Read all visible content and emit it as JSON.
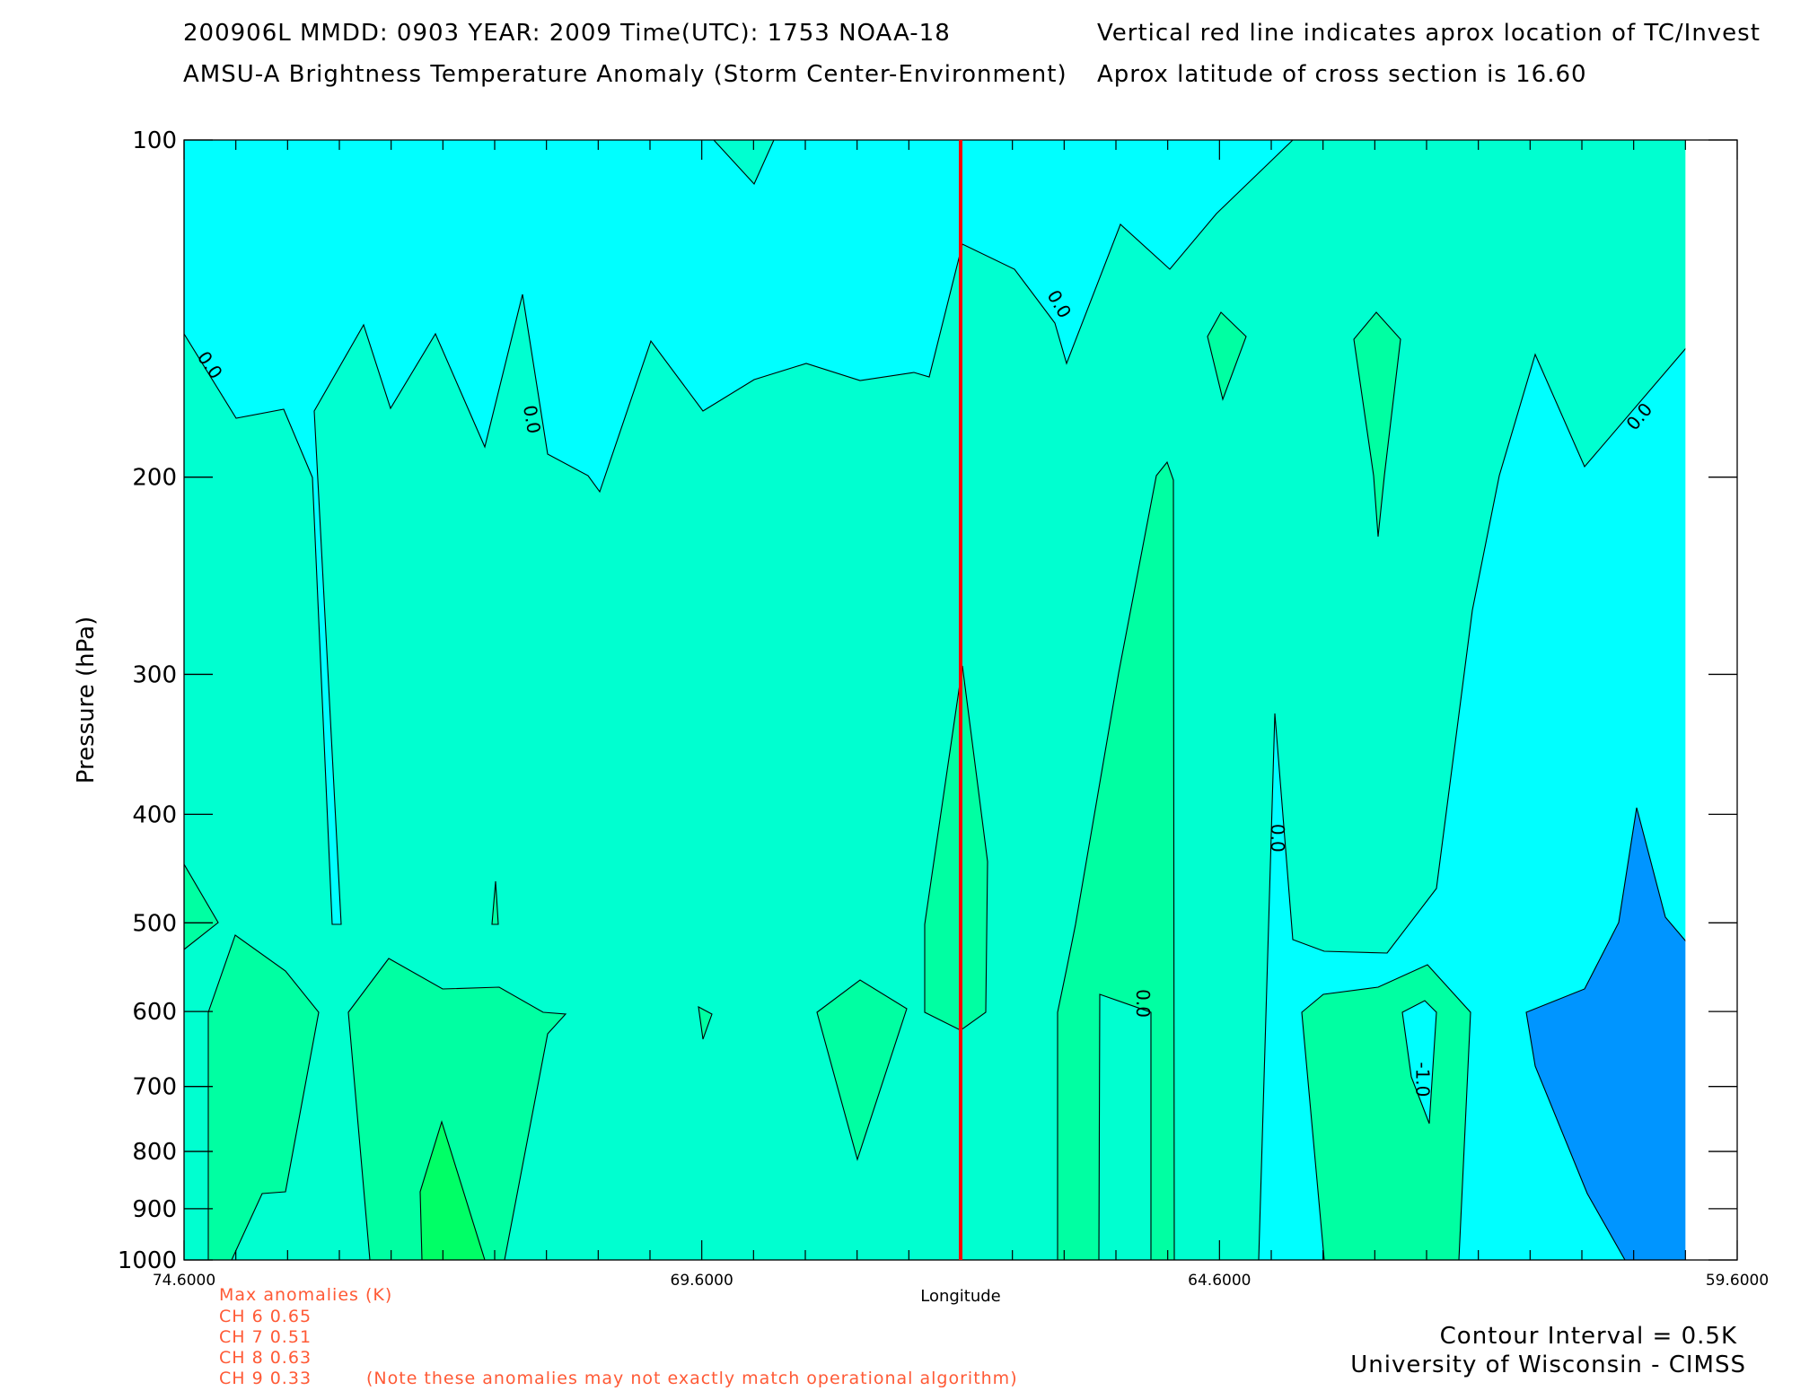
{
  "header": {
    "line1_left": "200906L  MMDD: 0903 YEAR: 2009 Time(UTC): 1753 NOAA-18",
    "line1_right": "Vertical red line indicates aprox location of TC/Invest",
    "line2_left": "AMSU-A Brightness Temperature Anomaly (Storm Center-Environment)",
    "line2_right": "Aprox latitude of cross section is 16.60"
  },
  "chart_data": {
    "type": "contour",
    "xlabel": "Longitude",
    "ylabel": "Pressure (hPa)",
    "xlim": [
      74.6,
      59.6
    ],
    "ylim": [
      1000,
      100
    ],
    "y_scale": "log",
    "x_ticks": [
      "74.6000",
      "69.6000",
      "64.6000",
      "59.6000"
    ],
    "x_tick_values": [
      74.6,
      69.6,
      64.6,
      59.6
    ],
    "y_ticks": [
      "100",
      "200",
      "300",
      "400",
      "500",
      "600",
      "700",
      "800",
      "900",
      "1000"
    ],
    "y_tick_values": [
      100,
      200,
      300,
      400,
      500,
      600,
      700,
      800,
      900,
      1000
    ],
    "storm_center_longitude": 67.1,
    "storm_line_color": "#ff0000",
    "data_x_max": 60.1,
    "contour_interval_K": 0.5,
    "contour_labels": [
      {
        "text": "0.0",
        "lon": 74.4,
        "p": 160,
        "angle": 55
      },
      {
        "text": "0.0",
        "lon": 71.3,
        "p": 178,
        "angle": 80
      },
      {
        "text": "0.0",
        "lon": 66.2,
        "p": 141,
        "angle": 60
      },
      {
        "text": "0.0",
        "lon": 60.5,
        "p": 178,
        "angle": -50
      },
      {
        "text": "0.0",
        "lon": 64.1,
        "p": 420,
        "angle": 90
      },
      {
        "text": "0.0",
        "lon": 65.4,
        "p": 590,
        "angle": 90
      },
      {
        "text": "-1.0",
        "lon": 62.7,
        "p": 690,
        "angle": 90
      }
    ],
    "colors": {
      "below_minus_1": "#0095ff",
      "minus_0_5_to_0": "#00ffff",
      "0_to_0_5": "#00ffd0",
      "0_5_to_1": "#00ffa2",
      "above_1": "#00ff66"
    }
  },
  "anomalies": {
    "title": "Max anomalies (K)",
    "rows": [
      "CH 6  0.65",
      "CH 7  0.51",
      "CH 8  0.63",
      "CH 9  0.33"
    ],
    "note": "(Note these anomalies may not exactly match operational algorithm)"
  },
  "footer": {
    "contour_interval": "Contour Interval = 0.5K",
    "credit": "University of Wisconsin - CIMSS"
  }
}
